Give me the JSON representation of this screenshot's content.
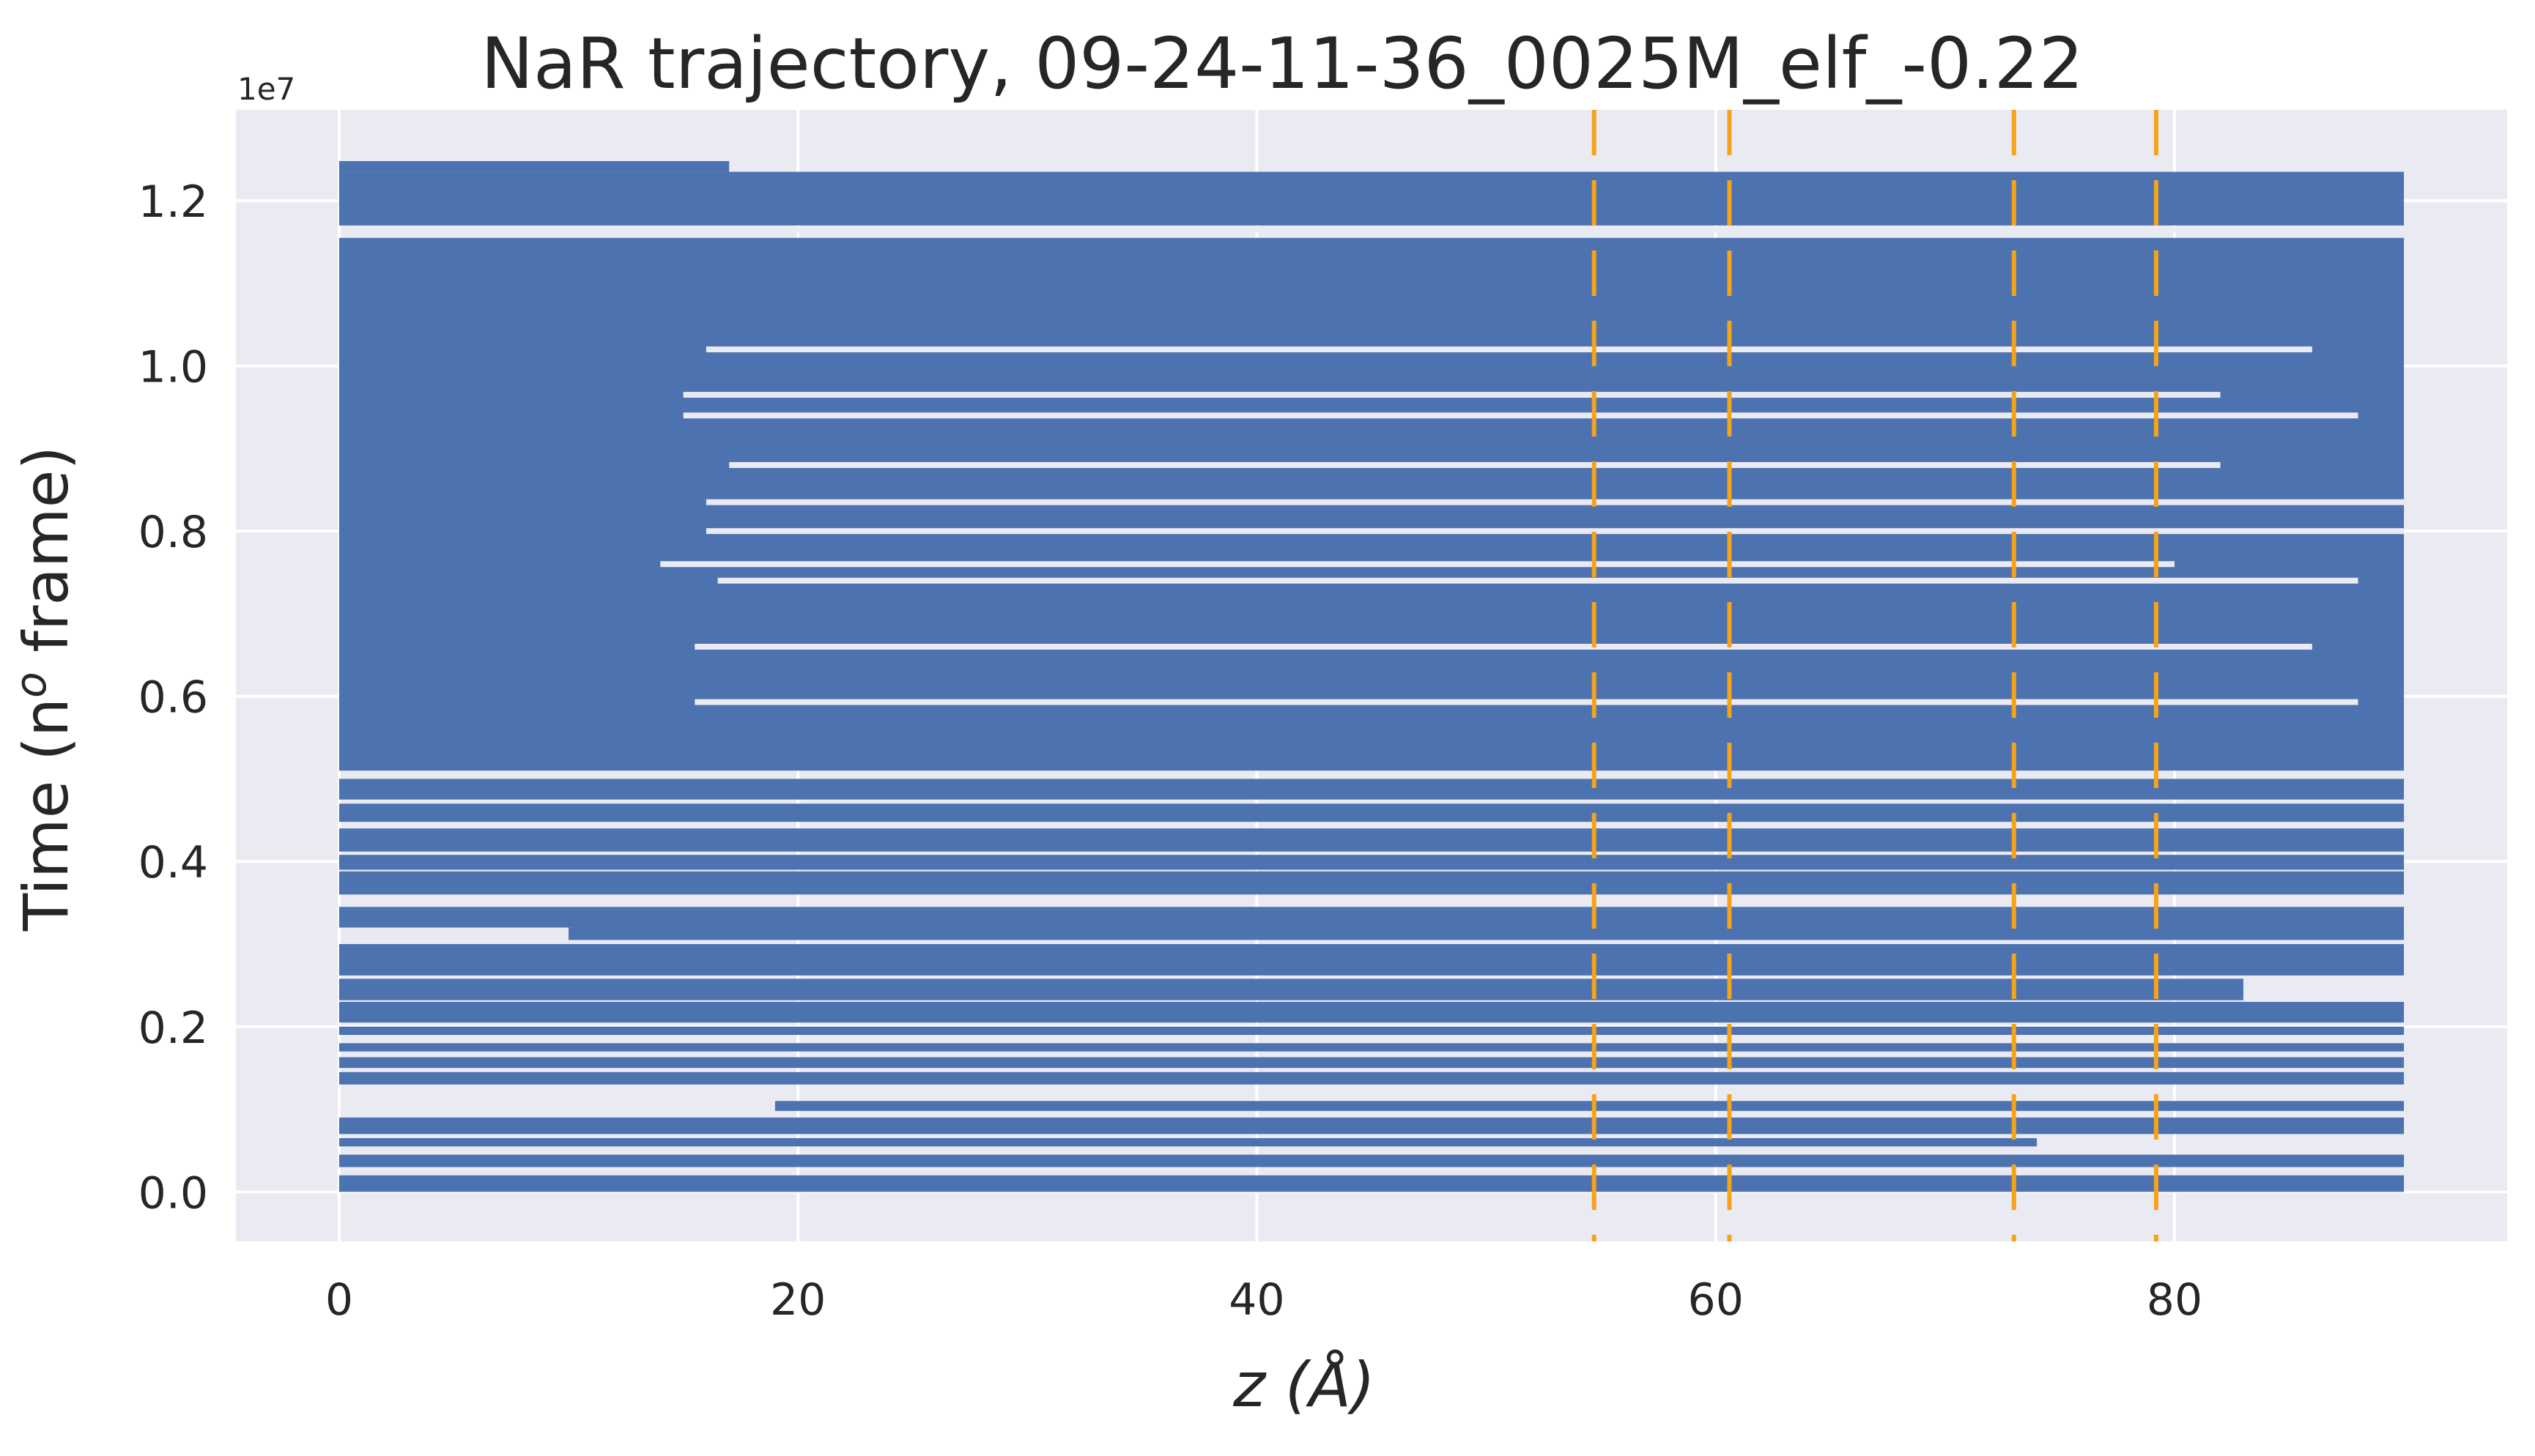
{
  "chart_data": {
    "type": "scatter",
    "title": "NaR trajectory, 09-24-11-36_0025M_elf_-0.22",
    "xlabel": "z (Å)",
    "ylabel": "Time (n",
    "ylabel_sup": "o",
    "ylabel_tail": " frame)",
    "y_offset_label": "1e7",
    "xlim": [
      -4.5,
      94.5
    ],
    "ylim": [
      -0.06,
      1.31
    ],
    "y_scale_factor": 10000000,
    "x_ticks": [
      0,
      20,
      40,
      60,
      80
    ],
    "x_tick_labels": [
      "0",
      "20",
      "40",
      "60",
      "80"
    ],
    "y_ticks": [
      0.0,
      0.2,
      0.4,
      0.6,
      0.8,
      1.0,
      1.2
    ],
    "y_tick_labels": [
      "0.0",
      "0.2",
      "0.4",
      "0.6",
      "0.8",
      "1.0",
      "1.2"
    ],
    "grid": true,
    "series_color": "#4c72b0",
    "bands": [
      [
        0.0,
        0.02,
        0,
        90
      ],
      [
        0.03,
        0.045,
        0,
        90
      ],
      [
        0.055,
        0.065,
        0,
        74
      ],
      [
        0.07,
        0.09,
        0,
        90
      ],
      [
        0.098,
        0.11,
        19,
        90
      ],
      [
        0.13,
        0.145,
        0,
        90
      ],
      [
        0.15,
        0.163,
        0,
        90
      ],
      [
        0.17,
        0.18,
        0,
        90
      ],
      [
        0.19,
        0.2,
        0,
        90
      ],
      [
        0.205,
        0.23,
        0,
        90
      ],
      [
        0.232,
        0.258,
        0,
        83
      ],
      [
        0.262,
        0.3,
        0,
        90
      ],
      [
        0.305,
        0.32,
        10,
        90
      ],
      [
        0.32,
        0.345,
        0,
        90
      ],
      [
        0.36,
        0.388,
        0,
        90
      ],
      [
        0.39,
        0.408,
        0,
        90
      ],
      [
        0.412,
        0.44,
        0,
        90
      ],
      [
        0.448,
        0.47,
        0,
        90
      ],
      [
        0.475,
        0.5,
        0,
        90
      ],
      [
        0.51,
        1.155,
        0,
        90
      ],
      [
        1.17,
        1.2,
        0,
        90
      ],
      [
        1.2,
        1.235,
        0,
        90
      ],
      [
        1.235,
        1.248,
        0,
        17
      ]
    ],
    "gaps": [
      [
        0.593,
        15.5,
        88
      ],
      [
        0.66,
        15.5,
        86
      ],
      [
        0.74,
        16.5,
        88
      ],
      [
        0.76,
        14.0,
        80
      ],
      [
        0.8,
        16.0,
        90
      ],
      [
        0.835,
        16.0,
        90
      ],
      [
        0.88,
        17.0,
        82
      ],
      [
        0.94,
        15.0,
        88
      ],
      [
        0.965,
        15.0,
        82
      ],
      [
        1.02,
        16.0,
        86
      ],
      [
        1.165,
        16.0,
        88
      ]
    ],
    "orange_lines": [
      54.7,
      60.6,
      73.0,
      79.2
    ],
    "orange_color": "#f5a31a"
  }
}
